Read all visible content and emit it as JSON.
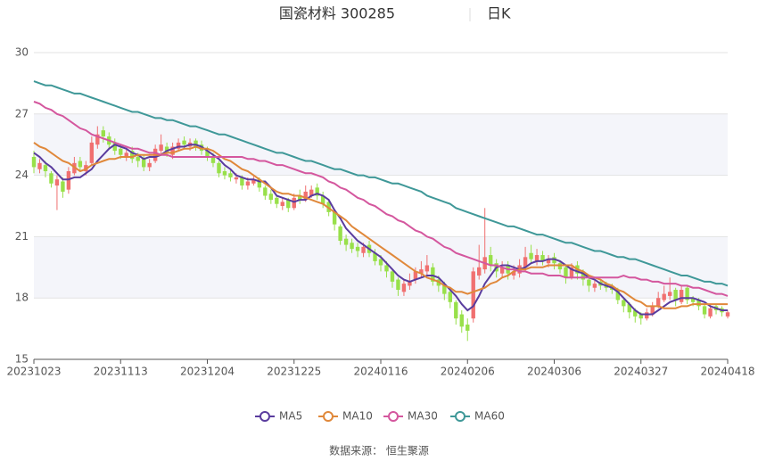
{
  "chart_data": {
    "type": "candlestick",
    "title": "国瓷材料 300285",
    "period": "日K",
    "source": "数据来源：  恒生聚源",
    "categories": [
      "20231023",
      null,
      null,
      null,
      null,
      null,
      null,
      null,
      null,
      null,
      null,
      null,
      null,
      null,
      null,
      "20231113",
      null,
      null,
      null,
      null,
      null,
      null,
      null,
      null,
      null,
      null,
      null,
      null,
      null,
      null,
      "20231204",
      null,
      null,
      null,
      null,
      null,
      null,
      null,
      null,
      null,
      null,
      null,
      null,
      null,
      null,
      "20231225",
      null,
      null,
      null,
      null,
      null,
      null,
      null,
      null,
      null,
      null,
      null,
      null,
      null,
      null,
      "20240116",
      null,
      null,
      null,
      null,
      null,
      null,
      null,
      null,
      null,
      null,
      null,
      null,
      null,
      null,
      "20240206",
      null,
      null,
      null,
      null,
      null,
      null,
      null,
      null,
      null,
      null,
      null,
      null,
      null,
      null,
      "20240306",
      null,
      null,
      null,
      null,
      null,
      null,
      null,
      null,
      null,
      null,
      null,
      null,
      null,
      null,
      "20240327",
      null,
      null,
      null,
      null,
      null,
      null,
      null,
      null,
      null,
      null,
      null,
      null,
      null,
      null,
      "20240418"
    ],
    "open": [
      24.9,
      24.3,
      24.5,
      24.1,
      23.5,
      23.7,
      23.3,
      24.1,
      24.7,
      24.2,
      24.6,
      25.5,
      26.2,
      25.9,
      25.6,
      25.3,
      24.9,
      25.2,
      24.9,
      24.8,
      24.4,
      24.7,
      25.2,
      25.4,
      25.0,
      25.3,
      25.7,
      25.4,
      25.7,
      25.5,
      25.2,
      24.9,
      24.6,
      24.2,
      24.1,
      23.8,
      23.9,
      23.5,
      23.6,
      23.8,
      23.4,
      23.1,
      22.9,
      22.5,
      22.8,
      22.4,
      23.0,
      22.8,
      23.0,
      23.4,
      23.0,
      22.7,
      22.2,
      21.5,
      20.9,
      20.7,
      20.5,
      20.2,
      20.6,
      20.2,
      19.9,
      19.6,
      19.3,
      18.9,
      18.3,
      18.6,
      18.9,
      19.2,
      19.3,
      19.5,
      18.9,
      18.6,
      18.3,
      17.8,
      17.2,
      16.7,
      17.0,
      19.1,
      19.4,
      20.1,
      19.7,
      19.2,
      19.6,
      19.1,
      19.2,
      19.5,
      20.2,
      19.8,
      20.1,
      19.7,
      20.0,
      19.7,
      19.5,
      19.0,
      19.6,
      19.3,
      18.9,
      18.5,
      18.8,
      18.7,
      18.6,
      18.4,
      17.9,
      17.7,
      17.4,
      17.2,
      17.0,
      17.2,
      17.6,
      17.9,
      18.1,
      18.4,
      17.8,
      18.5,
      18.0,
      17.9,
      17.6,
      17.1,
      17.6,
      17.5,
      17.1
    ],
    "high": [
      25.2,
      24.8,
      24.7,
      24.2,
      24.0,
      23.9,
      24.4,
      24.9,
      24.9,
      24.7,
      25.9,
      26.4,
      26.4,
      26.1,
      25.8,
      25.5,
      25.3,
      25.4,
      25.1,
      25.0,
      24.8,
      25.5,
      26.0,
      25.6,
      25.6,
      25.8,
      25.9,
      25.8,
      25.8,
      25.7,
      25.4,
      25.1,
      24.7,
      24.4,
      24.3,
      24.1,
      24.0,
      23.9,
      24.0,
      23.9,
      23.5,
      23.3,
      23.0,
      22.9,
      22.9,
      23.1,
      23.3,
      23.5,
      23.5,
      23.6,
      23.2,
      22.8,
      22.3,
      21.6,
      21.1,
      20.9,
      20.7,
      20.7,
      20.8,
      20.4,
      20.1,
      19.8,
      19.4,
      19.0,
      18.9,
      19.2,
      19.5,
      19.8,
      20.1,
      19.7,
      19.1,
      18.8,
      18.4,
      17.9,
      17.4,
      17.0,
      19.5,
      20.6,
      22.4,
      20.5,
      19.9,
      19.8,
      19.8,
      19.6,
      19.9,
      20.5,
      20.6,
      20.4,
      20.3,
      20.1,
      20.2,
      19.8,
      19.6,
      19.7,
      19.8,
      19.4,
      19.0,
      18.9,
      18.9,
      18.8,
      18.7,
      18.5,
      18.0,
      17.8,
      17.5,
      17.3,
      17.5,
      17.8,
      18.3,
      18.6,
      19.0,
      18.5,
      18.6,
      18.6,
      18.1,
      18.0,
      17.7,
      17.7,
      17.7,
      17.6,
      17.4
    ],
    "low": [
      24.1,
      24.1,
      23.9,
      23.4,
      22.3,
      22.9,
      23.1,
      24.0,
      24.2,
      24.0,
      24.5,
      25.3,
      25.6,
      25.3,
      25.0,
      24.8,
      24.7,
      24.6,
      24.4,
      24.2,
      24.2,
      24.6,
      25.0,
      24.9,
      24.8,
      25.2,
      25.3,
      25.2,
      25.2,
      25.0,
      24.7,
      24.4,
      23.9,
      23.8,
      23.7,
      23.6,
      23.3,
      23.3,
      23.5,
      23.2,
      22.8,
      22.6,
      22.4,
      22.3,
      22.2,
      22.3,
      22.6,
      22.7,
      22.9,
      22.8,
      22.4,
      22.0,
      21.3,
      20.6,
      20.3,
      20.2,
      20.0,
      20.0,
      20.0,
      19.6,
      19.3,
      19.0,
      18.5,
      18.1,
      18.1,
      18.4,
      18.7,
      19.0,
      19.1,
      18.6,
      18.3,
      17.9,
      17.5,
      16.7,
      16.3,
      15.9,
      16.8,
      18.9,
      19.2,
      19.3,
      19.0,
      19.0,
      18.9,
      18.9,
      19.0,
      19.3,
      19.7,
      19.6,
      19.6,
      19.5,
      19.4,
      19.2,
      18.7,
      18.9,
      18.9,
      18.6,
      18.3,
      18.3,
      18.4,
      18.3,
      18.2,
      17.7,
      17.3,
      17.0,
      16.8,
      16.7,
      16.9,
      17.1,
      17.5,
      17.8,
      17.9,
      17.6,
      17.7,
      17.7,
      17.6,
      17.4,
      17.0,
      17.0,
      17.2,
      17.1,
      17.0
    ],
    "close": [
      24.4,
      24.6,
      24.2,
      23.6,
      23.8,
      23.2,
      24.2,
      24.6,
      24.4,
      24.5,
      25.6,
      26.0,
      25.9,
      25.5,
      25.2,
      25.0,
      25.1,
      24.8,
      24.7,
      24.4,
      24.6,
      25.3,
      25.5,
      25.1,
      25.4,
      25.6,
      25.5,
      25.6,
      25.4,
      25.2,
      24.9,
      24.6,
      24.1,
      24.0,
      23.9,
      23.9,
      23.5,
      23.7,
      23.8,
      23.4,
      23.0,
      22.8,
      22.6,
      22.7,
      22.4,
      22.9,
      22.8,
      23.2,
      23.3,
      23.0,
      22.6,
      22.2,
      21.6,
      20.8,
      20.6,
      20.4,
      20.3,
      20.5,
      20.2,
      19.8,
      19.6,
      19.3,
      18.8,
      18.4,
      18.7,
      18.8,
      19.3,
      19.4,
      19.6,
      18.8,
      18.6,
      18.2,
      17.8,
      17.0,
      16.6,
      16.4,
      19.3,
      19.5,
      20.0,
      19.6,
      19.3,
      19.5,
      19.2,
      19.3,
      19.6,
      20.0,
      19.9,
      20.1,
      19.8,
      19.9,
      19.7,
      19.4,
      19.0,
      19.5,
      19.2,
      18.9,
      18.6,
      18.7,
      18.6,
      18.5,
      18.4,
      17.9,
      17.6,
      17.3,
      17.1,
      17.0,
      17.3,
      17.6,
      18.0,
      18.2,
      18.3,
      17.9,
      18.4,
      17.9,
      17.8,
      17.6,
      17.2,
      17.5,
      17.4,
      17.3,
      17.3
    ],
    "up_color": "#f07070",
    "down_color": "#98e04a",
    "series": [
      {
        "name": "MA5",
        "color": "#5a3c9e",
        "values": [
          25.1,
          24.9,
          24.6,
          24.4,
          24.1,
          23.8,
          23.8,
          23.9,
          23.9,
          24.1,
          24.3,
          24.7,
          25.0,
          25.3,
          25.5,
          25.4,
          25.3,
          25.1,
          25.0,
          24.8,
          24.9,
          24.9,
          25.0,
          25.2,
          25.3,
          25.4,
          25.4,
          25.5,
          25.5,
          25.4,
          25.2,
          25.0,
          24.8,
          24.5,
          24.3,
          24.0,
          23.9,
          23.8,
          23.8,
          23.7,
          23.7,
          23.4,
          23.0,
          22.9,
          22.8,
          22.7,
          22.8,
          22.8,
          23.0,
          23.1,
          23.0,
          22.8,
          22.3,
          21.9,
          21.4,
          21.1,
          20.8,
          20.6,
          20.4,
          20.2,
          20.0,
          19.7,
          19.4,
          19.1,
          18.9,
          18.8,
          18.9,
          19.0,
          19.1,
          19.1,
          19.0,
          18.7,
          18.4,
          18.1,
          17.7,
          17.4,
          17.6,
          18.1,
          18.7,
          19.1,
          19.5,
          19.6,
          19.6,
          19.5,
          19.4,
          19.5,
          19.7,
          19.8,
          19.8,
          19.9,
          19.9,
          19.8,
          19.6,
          19.4,
          19.3,
          19.2,
          19.0,
          18.9,
          18.7,
          18.6,
          18.5,
          18.3,
          18.0,
          17.7,
          17.4,
          17.2,
          17.2,
          17.2,
          17.4,
          17.6,
          17.8,
          17.9,
          18.0,
          18.0,
          18.0,
          17.9,
          17.8,
          17.6,
          17.5,
          17.4,
          17.4
        ]
      },
      {
        "name": "MA10",
        "color": "#e0883a",
        "values": [
          25.6,
          25.4,
          25.3,
          25.1,
          24.9,
          24.7,
          24.6,
          24.4,
          24.2,
          24.3,
          24.5,
          24.6,
          24.7,
          24.8,
          24.8,
          24.9,
          24.9,
          24.9,
          25.0,
          25.0,
          25.0,
          25.0,
          25.0,
          25.1,
          25.1,
          25.2,
          25.3,
          25.3,
          25.4,
          25.3,
          25.3,
          25.2,
          25.0,
          24.8,
          24.7,
          24.5,
          24.3,
          24.2,
          24.0,
          23.8,
          23.6,
          23.4,
          23.2,
          23.1,
          23.1,
          23.0,
          23.0,
          22.9,
          22.8,
          22.7,
          22.6,
          22.4,
          22.2,
          22.0,
          21.8,
          21.5,
          21.3,
          21.1,
          20.9,
          20.7,
          20.5,
          20.3,
          20.1,
          19.9,
          19.7,
          19.5,
          19.3,
          19.2,
          19.0,
          18.9,
          18.8,
          18.6,
          18.5,
          18.3,
          18.3,
          18.2,
          18.3,
          18.4,
          18.5,
          18.7,
          18.8,
          19.0,
          19.1,
          19.3,
          19.4,
          19.4,
          19.5,
          19.5,
          19.5,
          19.6,
          19.6,
          19.6,
          19.6,
          19.6,
          19.4,
          19.3,
          19.1,
          19.0,
          18.9,
          18.7,
          18.6,
          18.4,
          18.3,
          18.1,
          17.9,
          17.8,
          17.6,
          17.6,
          17.6,
          17.5,
          17.5,
          17.5,
          17.6,
          17.6,
          17.7,
          17.7,
          17.7,
          17.7,
          17.7,
          17.7,
          17.7
        ]
      },
      {
        "name": "MA30",
        "color": "#d4579e",
        "values": [
          27.6,
          27.5,
          27.3,
          27.2,
          27.0,
          26.9,
          26.7,
          26.5,
          26.3,
          26.2,
          26.0,
          25.9,
          25.8,
          25.7,
          25.6,
          25.5,
          25.4,
          25.3,
          25.3,
          25.2,
          25.1,
          25.1,
          25.0,
          25.0,
          24.9,
          24.9,
          24.9,
          24.9,
          24.9,
          24.9,
          24.9,
          24.9,
          24.9,
          24.9,
          24.9,
          24.9,
          24.9,
          24.8,
          24.8,
          24.7,
          24.7,
          24.6,
          24.5,
          24.5,
          24.4,
          24.3,
          24.2,
          24.1,
          24.1,
          24.0,
          23.9,
          23.7,
          23.6,
          23.4,
          23.3,
          23.1,
          22.9,
          22.8,
          22.6,
          22.5,
          22.3,
          22.1,
          22.0,
          21.8,
          21.7,
          21.5,
          21.3,
          21.2,
          21.0,
          20.9,
          20.7,
          20.5,
          20.4,
          20.2,
          20.1,
          20.0,
          19.9,
          19.8,
          19.7,
          19.6,
          19.6,
          19.5,
          19.4,
          19.4,
          19.3,
          19.3,
          19.2,
          19.2,
          19.2,
          19.1,
          19.1,
          19.1,
          19.0,
          19.0,
          19.0,
          19.0,
          19.0,
          19.0,
          19.0,
          19.0,
          19.0,
          19.0,
          19.1,
          19.0,
          19.0,
          18.9,
          18.9,
          18.8,
          18.8,
          18.7,
          18.7,
          18.7,
          18.6,
          18.6,
          18.5,
          18.5,
          18.4,
          18.3,
          18.2,
          18.2,
          18.1
        ]
      },
      {
        "name": "MA60",
        "color": "#3f9898",
        "values": [
          28.6,
          28.5,
          28.4,
          28.4,
          28.3,
          28.2,
          28.1,
          28.0,
          28.0,
          27.9,
          27.8,
          27.7,
          27.6,
          27.5,
          27.4,
          27.3,
          27.2,
          27.1,
          27.1,
          27.0,
          26.9,
          26.8,
          26.8,
          26.7,
          26.7,
          26.6,
          26.5,
          26.4,
          26.4,
          26.3,
          26.2,
          26.1,
          26.0,
          26.0,
          25.9,
          25.8,
          25.7,
          25.6,
          25.5,
          25.4,
          25.3,
          25.2,
          25.1,
          25.1,
          25.0,
          24.9,
          24.8,
          24.7,
          24.7,
          24.6,
          24.5,
          24.4,
          24.3,
          24.3,
          24.2,
          24.1,
          24.0,
          24.0,
          23.9,
          23.9,
          23.8,
          23.7,
          23.6,
          23.6,
          23.5,
          23.4,
          23.3,
          23.2,
          23.0,
          22.9,
          22.8,
          22.7,
          22.6,
          22.4,
          22.3,
          22.2,
          22.1,
          22.0,
          21.9,
          21.8,
          21.7,
          21.6,
          21.5,
          21.5,
          21.4,
          21.3,
          21.2,
          21.1,
          21.1,
          21.0,
          20.9,
          20.8,
          20.7,
          20.7,
          20.6,
          20.5,
          20.4,
          20.3,
          20.3,
          20.2,
          20.1,
          20.0,
          20.0,
          19.9,
          19.9,
          19.8,
          19.7,
          19.6,
          19.5,
          19.4,
          19.3,
          19.2,
          19.1,
          19.1,
          19.0,
          18.9,
          18.8,
          18.8,
          18.7,
          18.7,
          18.6
        ]
      }
    ],
    "ylim": [
      15,
      30
    ],
    "yticks": [
      15,
      18,
      21,
      24,
      27,
      30
    ],
    "band_color": "#f4f5fa",
    "grid": true
  }
}
